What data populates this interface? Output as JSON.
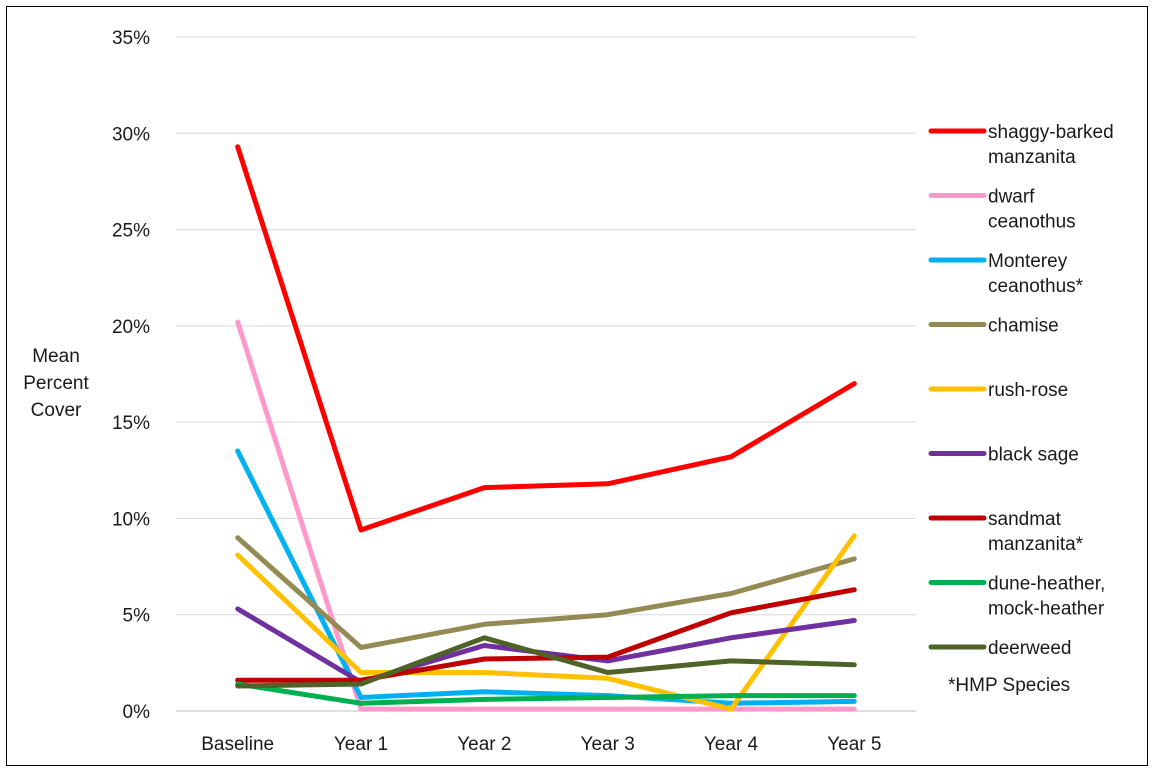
{
  "chart_data": {
    "type": "line",
    "title": "",
    "xlabel": "",
    "ylabel_lines": [
      "Mean",
      "Percent",
      "Cover"
    ],
    "categories": [
      "Baseline",
      "Year 1",
      "Year 2",
      "Year 3",
      "Year 4",
      "Year 5"
    ],
    "ylim": [
      0,
      35
    ],
    "yticks": [
      "0%",
      "5%",
      "10%",
      "15%",
      "20%",
      "25%",
      "30%",
      "35%"
    ],
    "grid": true,
    "legend_position": "right",
    "series": [
      {
        "name": "shaggy-barked manzanita",
        "color": "#ff0000",
        "values": [
          29.3,
          9.4,
          11.6,
          11.8,
          13.2,
          17.0
        ]
      },
      {
        "name": "dwarf ceanothus",
        "color": "#ff99cc",
        "values": [
          20.2,
          0.1,
          0.1,
          0.1,
          0.1,
          0.1
        ]
      },
      {
        "name": "Monterey ceanothus*",
        "color": "#00b0f0",
        "values": [
          13.5,
          0.7,
          1.0,
          0.8,
          0.4,
          0.5
        ]
      },
      {
        "name": "chamise",
        "color": "#948a54",
        "values": [
          9.0,
          3.3,
          4.5,
          5.0,
          6.1,
          7.9
        ]
      },
      {
        "name": "rush-rose",
        "color": "#ffc000",
        "values": [
          8.1,
          2.0,
          2.0,
          1.7,
          0.1,
          9.1
        ]
      },
      {
        "name": "black sage",
        "color": "#7030a0",
        "values": [
          5.3,
          1.5,
          3.4,
          2.6,
          3.8,
          4.7
        ]
      },
      {
        "name": "sandmat manzanita*",
        "color": "#c00000",
        "values": [
          1.6,
          1.6,
          2.7,
          2.8,
          5.1,
          6.3
        ]
      },
      {
        "name": "dune-heather, mock-heather",
        "color": "#00b050",
        "values": [
          1.4,
          0.4,
          0.6,
          0.7,
          0.8,
          0.8
        ]
      },
      {
        "name": "deerweed",
        "color": "#4f6228",
        "values": [
          1.3,
          1.4,
          3.8,
          2.0,
          2.6,
          2.4
        ]
      }
    ],
    "legend_labels": [
      [
        "shaggy-barked",
        "manzanita"
      ],
      [
        "dwarf",
        "ceanothus"
      ],
      [
        "Monterey",
        "ceanothus*"
      ],
      [
        "chamise"
      ],
      [
        "rush-rose"
      ],
      [
        "black sage"
      ],
      [
        "sandmat",
        "manzanita*"
      ],
      [
        "dune-heather,",
        "mock-heather"
      ],
      [
        "deerweed"
      ]
    ],
    "note": "*HMP Species"
  }
}
